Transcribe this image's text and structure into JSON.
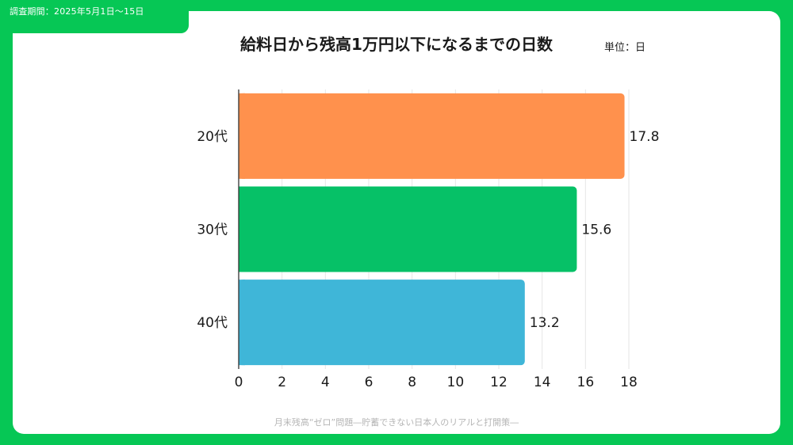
{
  "header": {
    "period": "調査期間：2025年5月1日〜15日"
  },
  "chart_data": {
    "type": "bar",
    "orientation": "horizontal",
    "title": "給料日から残高1万円以下になるまでの日数",
    "unit_label": "単位：日",
    "categories": [
      "20代",
      "30代",
      "40代"
    ],
    "values": [
      17.8,
      15.6,
      13.2
    ],
    "value_labels": [
      "17.8",
      "15.6",
      "13.2"
    ],
    "colors": [
      "#FF914D",
      "#06C167",
      "#3FB6D8"
    ],
    "xlim": [
      0,
      18
    ],
    "xticks": [
      0,
      2,
      4,
      6,
      8,
      10,
      12,
      14,
      16,
      18
    ],
    "grid": true
  },
  "footer": {
    "text": "月末残高“ゼロ”問題―貯蓄できない日本人のリアルと打開策―"
  }
}
